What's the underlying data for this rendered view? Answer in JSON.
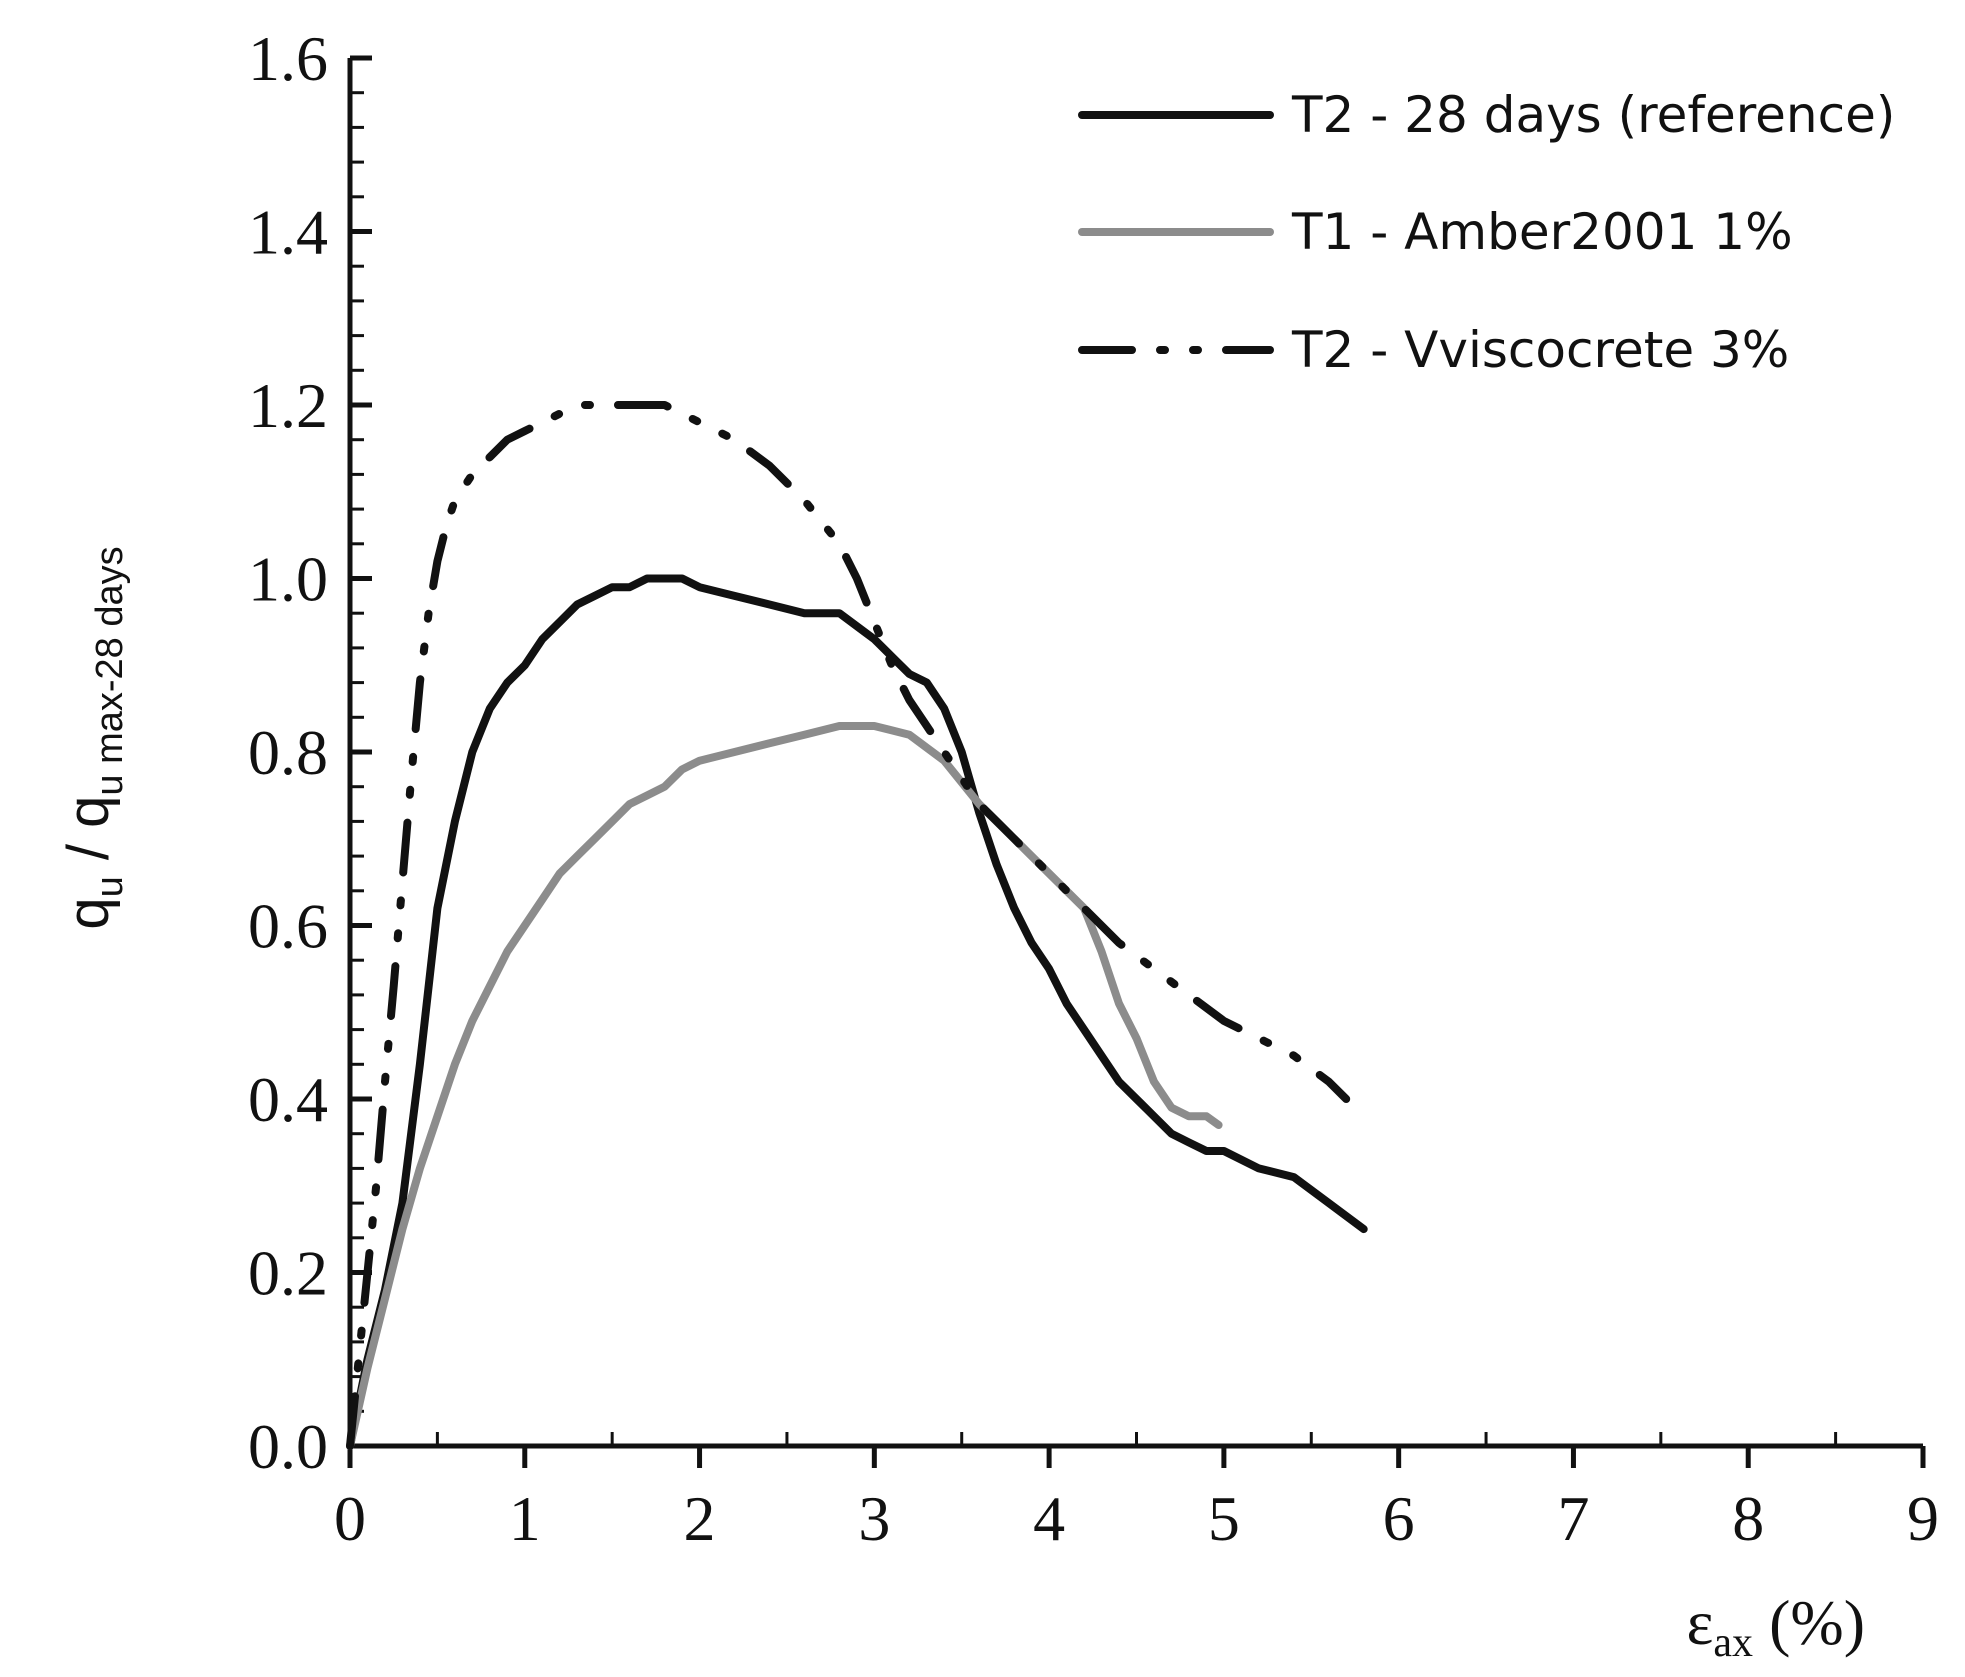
{
  "chart_data": {
    "type": "line",
    "title": "",
    "xlabel": {
      "main": "ε",
      "sub": "ax",
      "unit": " (%)"
    },
    "ylabel": {
      "q1": "q",
      "sub1": "u",
      "sep": " / ",
      "q2": "q",
      "sub2": "u max-28 days"
    },
    "xlim": [
      0,
      9
    ],
    "ylim": [
      0,
      1.6
    ],
    "x_ticks": [
      "0",
      "1",
      "2",
      "3",
      "4",
      "5",
      "6",
      "7",
      "8",
      "9"
    ],
    "y_ticks": [
      "0.0",
      "0.2",
      "0.4",
      "0.6",
      "0.8",
      "1.0",
      "1.2",
      "1.4",
      "1.6"
    ],
    "grid": false,
    "legend_position": "top-right",
    "series": [
      {
        "name": "T2 - 28 days (reference)",
        "color": "#111111",
        "style": "solid",
        "x": [
          0,
          0.05,
          0.1,
          0.2,
          0.3,
          0.4,
          0.5,
          0.6,
          0.7,
          0.8,
          0.9,
          1.0,
          1.1,
          1.2,
          1.3,
          1.4,
          1.5,
          1.6,
          1.7,
          1.8,
          1.9,
          2.0,
          2.2,
          2.4,
          2.6,
          2.8,
          3.0,
          3.1,
          3.2,
          3.3,
          3.4,
          3.5,
          3.6,
          3.7,
          3.8,
          3.9,
          4.0,
          4.1,
          4.2,
          4.3,
          4.4,
          4.5,
          4.6,
          4.7,
          4.8,
          4.9,
          5.0,
          5.2,
          5.4,
          5.6,
          5.8
        ],
        "y": [
          0,
          0.05,
          0.1,
          0.18,
          0.28,
          0.44,
          0.62,
          0.72,
          0.8,
          0.85,
          0.88,
          0.9,
          0.93,
          0.95,
          0.97,
          0.98,
          0.99,
          0.99,
          1.0,
          1.0,
          1.0,
          0.99,
          0.98,
          0.97,
          0.96,
          0.96,
          0.93,
          0.91,
          0.89,
          0.88,
          0.85,
          0.8,
          0.73,
          0.67,
          0.62,
          0.58,
          0.55,
          0.51,
          0.48,
          0.45,
          0.42,
          0.4,
          0.38,
          0.36,
          0.35,
          0.34,
          0.34,
          0.32,
          0.31,
          0.28,
          0.25
        ]
      },
      {
        "name": "T1 - Amber2001 1%",
        "color": "#8c8c8c",
        "style": "solid",
        "x": [
          0,
          0.1,
          0.2,
          0.3,
          0.4,
          0.5,
          0.6,
          0.7,
          0.8,
          0.9,
          1.0,
          1.1,
          1.2,
          1.3,
          1.4,
          1.5,
          1.6,
          1.7,
          1.8,
          1.9,
          2.0,
          2.2,
          2.4,
          2.6,
          2.8,
          3.0,
          3.2,
          3.4,
          3.6,
          3.8,
          4.0,
          4.2,
          4.3,
          4.4,
          4.5,
          4.6,
          4.7,
          4.8,
          4.9,
          4.97
        ],
        "y": [
          0,
          0.09,
          0.17,
          0.25,
          0.32,
          0.38,
          0.44,
          0.49,
          0.53,
          0.57,
          0.6,
          0.63,
          0.66,
          0.68,
          0.7,
          0.72,
          0.74,
          0.75,
          0.76,
          0.78,
          0.79,
          0.8,
          0.81,
          0.82,
          0.83,
          0.83,
          0.82,
          0.79,
          0.74,
          0.7,
          0.66,
          0.62,
          0.57,
          0.51,
          0.47,
          0.42,
          0.39,
          0.38,
          0.38,
          0.37
        ]
      },
      {
        "name": "T2 - Vviscocrete 3%",
        "color": "#111111",
        "style": "dash-dot-dot",
        "x": [
          0,
          0.05,
          0.1,
          0.15,
          0.2,
          0.25,
          0.3,
          0.35,
          0.4,
          0.45,
          0.5,
          0.55,
          0.6,
          0.7,
          0.8,
          0.9,
          1.0,
          1.1,
          1.2,
          1.3,
          1.4,
          1.5,
          1.6,
          1.7,
          1.8,
          1.9,
          2.0,
          2.2,
          2.4,
          2.6,
          2.8,
          2.9,
          3.0,
          3.1,
          3.2,
          3.3,
          3.4,
          3.5,
          3.6,
          3.7,
          3.8,
          3.9,
          4.0,
          4.2,
          4.4,
          4.6,
          4.8,
          5.0,
          5.2,
          5.4,
          5.6,
          5.7
        ],
        "y": [
          0,
          0.1,
          0.2,
          0.3,
          0.42,
          0.53,
          0.65,
          0.77,
          0.88,
          0.96,
          1.02,
          1.06,
          1.09,
          1.12,
          1.14,
          1.16,
          1.17,
          1.18,
          1.19,
          1.2,
          1.2,
          1.2,
          1.2,
          1.2,
          1.2,
          1.19,
          1.18,
          1.16,
          1.13,
          1.09,
          1.04,
          1.0,
          0.95,
          0.9,
          0.86,
          0.83,
          0.8,
          0.77,
          0.74,
          0.72,
          0.7,
          0.68,
          0.66,
          0.62,
          0.58,
          0.55,
          0.52,
          0.49,
          0.47,
          0.45,
          0.42,
          0.4
        ]
      }
    ]
  }
}
